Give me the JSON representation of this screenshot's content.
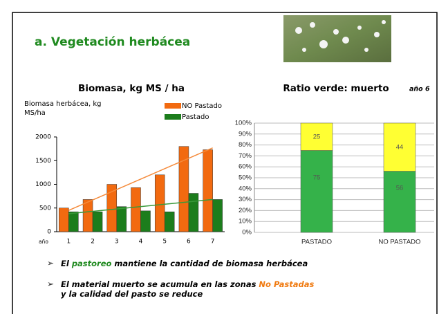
{
  "header": {
    "title": "a.  Vegetación herbácea"
  },
  "bullets": [
    {
      "marker": "➢",
      "lines": [
        [
          {
            "text": "El "
          },
          {
            "text": "pastoreo",
            "color": "#1f8a1f"
          },
          {
            "text": " mantiene la cantidad de biomasa herbácea"
          }
        ]
      ]
    },
    {
      "marker": "➢",
      "lines": [
        [
          {
            "text": "El material muerto se acumula en las zonas "
          },
          {
            "text": "No Pastadas",
            "color": "#f07a10"
          }
        ],
        [
          {
            "text": "y la calidad del pasto se reduce"
          }
        ]
      ]
    }
  ],
  "chart_data": [
    {
      "type": "bar",
      "title": "Biomasa, kg MS / ha",
      "y_label": "Biomasa herbácea, kg MS/ha",
      "x_label": "año",
      "categories": [
        "1",
        "2",
        "3",
        "4",
        "5",
        "6",
        "7"
      ],
      "series": [
        {
          "name": "NO Pastado",
          "color": "#f26a10",
          "values": [
            500,
            680,
            1000,
            930,
            1200,
            1800,
            1730
          ]
        },
        {
          "name": "Pastado",
          "color": "#1c7d1c",
          "values": [
            420,
            420,
            530,
            440,
            420,
            810,
            680
          ]
        }
      ],
      "trendlines": [
        {
          "color": "#f58a3a",
          "values": [
            450,
            1770
          ]
        },
        {
          "color": "#3a9a3a",
          "values": [
            380,
            680
          ]
        }
      ],
      "ylim": [
        0,
        2000
      ],
      "yticks": [
        0,
        500,
        1000,
        1500,
        2000
      ],
      "legend": "top-right"
    },
    {
      "type": "stacked-bar",
      "title": "Ratio verde: muerto",
      "annotation": "año 6",
      "categories": [
        "PASTADO",
        "NO PASTADO"
      ],
      "series": [
        {
          "color": "#35b24a",
          "values": [
            75,
            56
          ]
        },
        {
          "color": "#ffff33",
          "values": [
            25,
            44
          ]
        }
      ],
      "ylim": [
        0,
        100
      ],
      "yticks": [
        {
          "value": 0,
          "label": "0%"
        },
        {
          "value": 10,
          "label": "10%"
        },
        {
          "value": 20,
          "label": "20%"
        },
        {
          "value": 30,
          "label": "30%"
        },
        {
          "value": 40,
          "label": "40%"
        },
        {
          "value": 50,
          "label": "50%"
        },
        {
          "value": 60,
          "label": "60%"
        },
        {
          "value": 70,
          "label": "70%"
        },
        {
          "value": 80,
          "label": "80%"
        },
        {
          "value": 90,
          "label": "90%"
        },
        {
          "value": 100,
          "label": "100%"
        }
      ],
      "grid": true
    }
  ]
}
